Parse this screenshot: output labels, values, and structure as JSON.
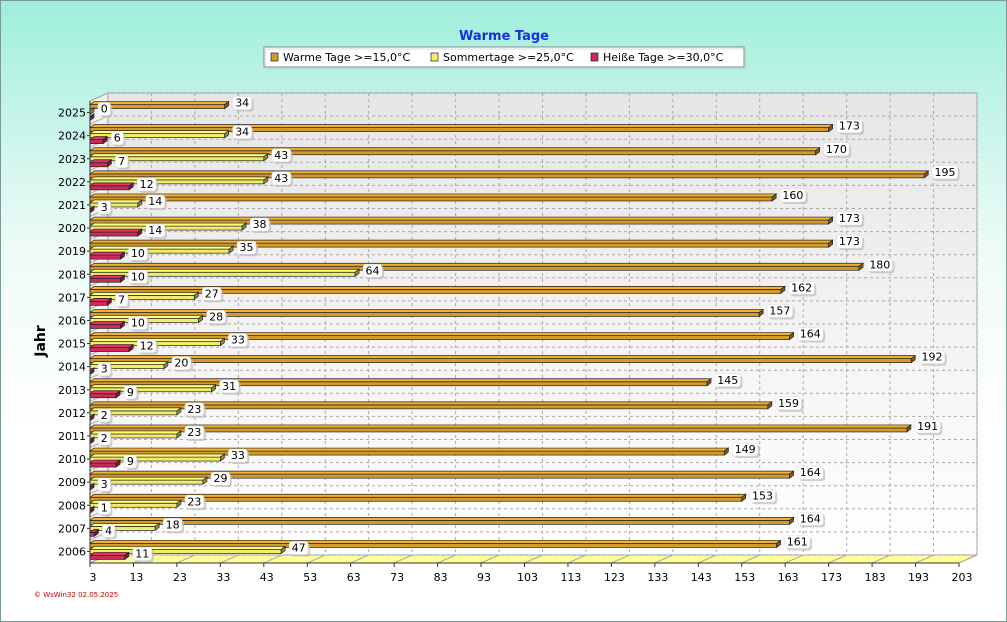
{
  "chart_data": {
    "type": "bar",
    "orientation": "horizontal",
    "title": "Warme Tage",
    "ylabel": "Jahr",
    "xlabel": "",
    "xlim": [
      3,
      203
    ],
    "xticks": [
      3,
      13,
      23,
      33,
      43,
      53,
      63,
      73,
      83,
      93,
      103,
      113,
      123,
      133,
      143,
      153,
      163,
      173,
      183,
      193,
      203
    ],
    "grid": true,
    "legend_position": "top-center",
    "categories": [
      "2025",
      "2024",
      "2023",
      "2022",
      "2021",
      "2020",
      "2019",
      "2018",
      "2017",
      "2016",
      "2015",
      "2014",
      "2013",
      "2012",
      "2011",
      "2010",
      "2009",
      "2008",
      "2007",
      "2006"
    ],
    "series": [
      {
        "name": "Warme Tage >=15,0°C",
        "color": "#d49a2a",
        "values": [
          34,
          173,
          170,
          195,
          160,
          173,
          173,
          180,
          162,
          157,
          164,
          192,
          145,
          159,
          191,
          149,
          164,
          153,
          164,
          161
        ]
      },
      {
        "name": "Sommertage >=25,0°C",
        "color": "#f2ec6a",
        "values": [
          0,
          34,
          43,
          43,
          14,
          38,
          35,
          64,
          27,
          28,
          33,
          20,
          31,
          23,
          23,
          33,
          29,
          23,
          18,
          47
        ]
      },
      {
        "name": "Heiße Tage >=30,0°C",
        "color": "#cc2a5a",
        "values": [
          0,
          6,
          7,
          12,
          3,
          14,
          10,
          10,
          7,
          10,
          12,
          3,
          9,
          2,
          2,
          9,
          3,
          1,
          4,
          11
        ]
      }
    ],
    "data_labels": [
      [
        "34",
        "0",
        null
      ],
      [
        "173",
        "34",
        "6"
      ],
      [
        "170",
        "43",
        "7"
      ],
      [
        "195",
        "43",
        "12"
      ],
      [
        "160",
        "14",
        "3"
      ],
      [
        "173",
        "38",
        "14"
      ],
      [
        "173",
        "35",
        "10"
      ],
      [
        "180",
        "64",
        "10"
      ],
      [
        "162",
        "27",
        "7"
      ],
      [
        "157",
        "28",
        "10"
      ],
      [
        "164",
        "33",
        "12"
      ],
      [
        "192",
        "20",
        "3"
      ],
      [
        "145",
        "31",
        "9"
      ],
      [
        "159",
        "23",
        "2"
      ],
      [
        "191",
        "23",
        "2"
      ],
      [
        "149",
        "33",
        "9"
      ],
      [
        "164",
        "29",
        "3"
      ],
      [
        "153",
        "23",
        "1"
      ],
      [
        "164",
        "18",
        "4"
      ],
      [
        "161",
        "47",
        "11"
      ]
    ]
  },
  "footer": "© WsWin32  02.05.2025"
}
